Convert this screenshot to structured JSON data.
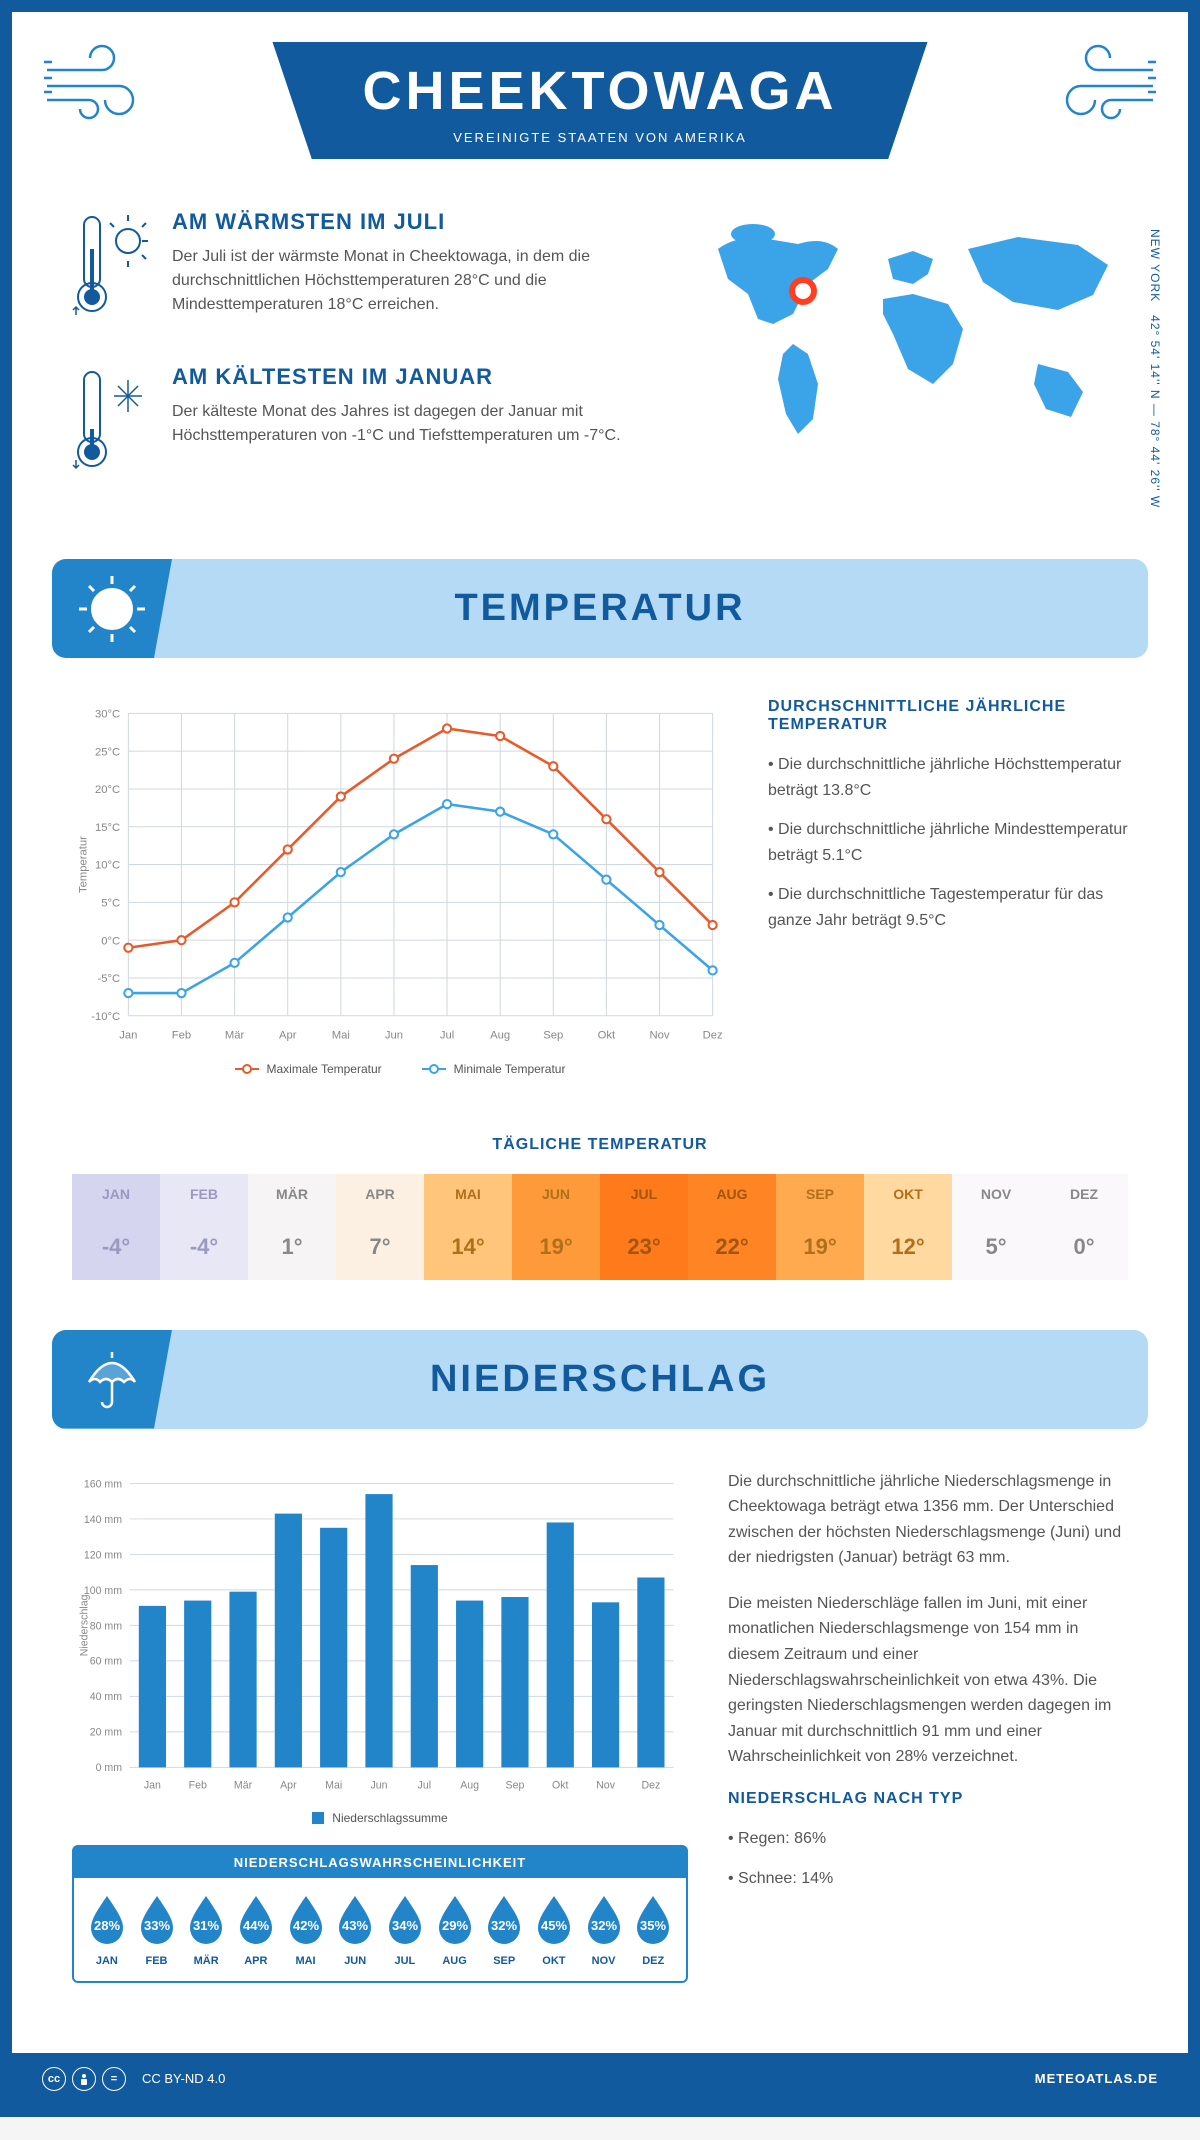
{
  "header": {
    "title": "CHEEKTOWAGA",
    "subtitle": "VEREINIGTE STAATEN VON AMERIKA"
  },
  "coords": {
    "text": "42° 54' 14'' N — 78° 44' 26'' W",
    "region": "NEW YORK"
  },
  "intro": {
    "warmest": {
      "heading": "AM WÄRMSTEN IM JULI",
      "text": "Der Juli ist der wärmste Monat in Cheektowaga, in dem die durchschnittlichen Höchsttemperaturen 28°C und die Mindesttemperaturen 18°C erreichen."
    },
    "coldest": {
      "heading": "AM KÄLTESTEN IM JANUAR",
      "text": "Der kälteste Monat des Jahres ist dagegen der Januar mit Höchsttemperaturen von -1°C und Tiefsttemperaturen um -7°C."
    }
  },
  "temperature": {
    "section_title": "TEMPERATUR",
    "chart": {
      "months": [
        "Jan",
        "Feb",
        "Mär",
        "Apr",
        "Mai",
        "Jun",
        "Jul",
        "Aug",
        "Sep",
        "Okt",
        "Nov",
        "Dez"
      ],
      "max_series": [
        -1,
        0,
        5,
        12,
        19,
        24,
        28,
        27,
        23,
        16,
        9,
        2
      ],
      "min_series": [
        -7,
        -7,
        -3,
        3,
        9,
        14,
        18,
        17,
        14,
        8,
        2,
        -4
      ],
      "ylim": [
        -10,
        30
      ],
      "ytick_step": 5,
      "max_color": "#e85a2a",
      "min_color": "#3ba3e8",
      "grid_color": "#d0d8e0",
      "bg_color": "#ffffff",
      "ylabel": "Temperatur",
      "legend_max": "Maximale Temperatur",
      "legend_min": "Minimale Temperatur"
    },
    "info": {
      "heading": "DURCHSCHNITTLICHE JÄHRLICHE TEMPERATUR",
      "bullets": [
        "• Die durchschnittliche jährliche Höchsttemperatur beträgt 13.8°C",
        "• Die durchschnittliche jährliche Mindesttemperatur beträgt 5.1°C",
        "• Die durchschnittliche Tagestemperatur für das ganze Jahr beträgt 9.5°C"
      ]
    },
    "daily": {
      "title": "TÄGLICHE TEMPERATUR",
      "months": [
        "JAN",
        "FEB",
        "MÄR",
        "APR",
        "MAI",
        "JUN",
        "JUL",
        "AUG",
        "SEP",
        "OKT",
        "NOV",
        "DEZ"
      ],
      "temps": [
        "-4°",
        "-4°",
        "1°",
        "7°",
        "14°",
        "19°",
        "23°",
        "22°",
        "19°",
        "12°",
        "5°",
        "0°"
      ],
      "bg_colors": [
        "#d6d5ef",
        "#e8e7f6",
        "#f6f4f4",
        "#fcf0e2",
        "#ffc57a",
        "#ff9a3a",
        "#ff7a1a",
        "#ff8524",
        "#ffaa4f",
        "#ffd9a0",
        "#faf8fb",
        "#faf8fb"
      ],
      "text_colors": [
        "#9a99c0",
        "#9a99c0",
        "#888",
        "#888",
        "#b0701a",
        "#b0701a",
        "#a05510",
        "#a05510",
        "#b0701a",
        "#b0701a",
        "#888",
        "#888"
      ]
    }
  },
  "precipitation": {
    "section_title": "NIEDERSCHLAG",
    "chart": {
      "months": [
        "Jan",
        "Feb",
        "Mär",
        "Apr",
        "Mai",
        "Jun",
        "Jul",
        "Aug",
        "Sep",
        "Okt",
        "Nov",
        "Dez"
      ],
      "values": [
        91,
        94,
        99,
        143,
        135,
        154,
        114,
        94,
        96,
        138,
        93,
        107
      ],
      "ylim": [
        0,
        160
      ],
      "ytick_step": 20,
      "bar_color": "#2385c9",
      "grid_color": "#d0d8e0",
      "ylabel": "Niederschlag",
      "legend": "Niederschlagssumme"
    },
    "info": {
      "para1": "Die durchschnittliche jährliche Niederschlagsmenge in Cheektowaga beträgt etwa 1356 mm. Der Unterschied zwischen der höchsten Niederschlagsmenge (Juni) und der niedrigsten (Januar) beträgt 63 mm.",
      "para2": "Die meisten Niederschläge fallen im Juni, mit einer monatlichen Niederschlagsmenge von 154 mm in diesem Zeitraum und einer Niederschlagswahrscheinlichkeit von etwa 43%. Die geringsten Niederschlagsmengen werden dagegen im Januar mit durchschnittlich 91 mm und einer Wahrscheinlichkeit von 28% verzeichnet.",
      "type_heading": "NIEDERSCHLAG NACH TYP",
      "type_rain": "• Regen: 86%",
      "type_snow": "• Schnee: 14%"
    },
    "prob": {
      "title": "NIEDERSCHLAGSWAHRSCHEINLICHKEIT",
      "months": [
        "JAN",
        "FEB",
        "MÄR",
        "APR",
        "MAI",
        "JUN",
        "JUL",
        "AUG",
        "SEP",
        "OKT",
        "NOV",
        "DEZ"
      ],
      "values": [
        "28%",
        "33%",
        "31%",
        "44%",
        "42%",
        "43%",
        "34%",
        "29%",
        "32%",
        "45%",
        "32%",
        "35%"
      ],
      "drop_color": "#2385c9"
    }
  },
  "footer": {
    "license": "CC BY-ND 4.0",
    "site": "METEOATLAS.DE"
  },
  "colors": {
    "primary": "#125a9e",
    "secondary": "#2385c9",
    "light_blue": "#b4daf5"
  }
}
